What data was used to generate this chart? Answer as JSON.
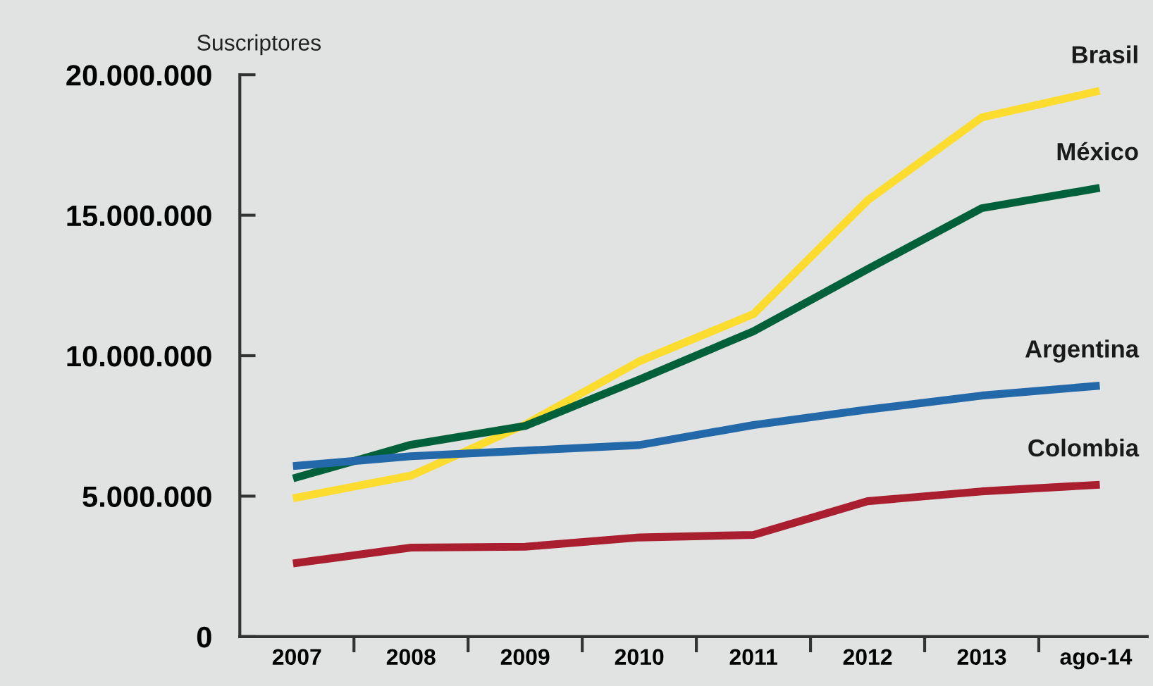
{
  "chart_data": {
    "type": "line",
    "ylabel": "Suscriptores",
    "categories": [
      "2007",
      "2008",
      "2009",
      "2010",
      "2011",
      "2012",
      "2013",
      "ago-14"
    ],
    "series": [
      {
        "name": "Brasil",
        "color": "#fcdc2e",
        "values": [
          4950000,
          5730000,
          7550000,
          9800000,
          11480000,
          15530000,
          18480000,
          19400000
        ]
      },
      {
        "name": "México",
        "color": "#00603a",
        "values": [
          5670000,
          6830000,
          7500000,
          9150000,
          10870000,
          13080000,
          15250000,
          15950000
        ]
      },
      {
        "name": "Argentina",
        "color": "#2369a9",
        "values": [
          6080000,
          6420000,
          6620000,
          6820000,
          7530000,
          8080000,
          8580000,
          8920000
        ]
      },
      {
        "name": "Colombia",
        "color": "#a91f2f",
        "values": [
          2620000,
          3170000,
          3200000,
          3530000,
          3620000,
          4820000,
          5170000,
          5400000
        ]
      }
    ],
    "ylim": [
      0,
      20000000
    ],
    "yticks": [
      0,
      {
        "value": 5000000,
        "label": "5.000.000"
      },
      {
        "value": 10000000,
        "label": "10.000.000"
      },
      {
        "value": 15000000,
        "label": "15.000.000"
      },
      {
        "value": 20000000,
        "label": "20.000.000"
      }
    ],
    "grid": false,
    "legend": false,
    "marker": "none",
    "line_style": "solid"
  }
}
